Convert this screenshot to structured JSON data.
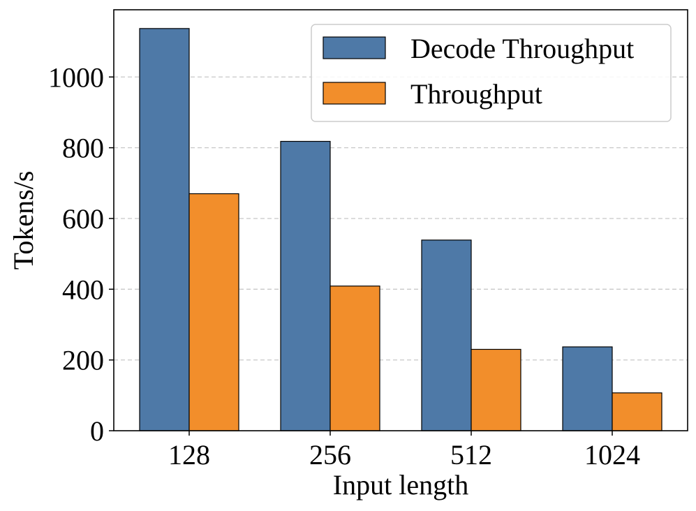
{
  "chart_data": {
    "type": "bar",
    "title": "",
    "xlabel": "Input length",
    "ylabel": "Tokens/s",
    "categories": [
      "128",
      "256",
      "512",
      "1024"
    ],
    "series": [
      {
        "name": "Decode Throughput",
        "color": "#4e79a7",
        "values": [
          1137,
          818,
          539,
          237
        ]
      },
      {
        "name": "Throughput",
        "color": "#f28e2b",
        "values": [
          670,
          409,
          230,
          107
        ]
      }
    ],
    "yticks": [
      0,
      200,
      400,
      600,
      800,
      1000
    ],
    "ylim": [
      0,
      1190
    ],
    "grid": "y-dashed",
    "legend_position": "top-right"
  }
}
